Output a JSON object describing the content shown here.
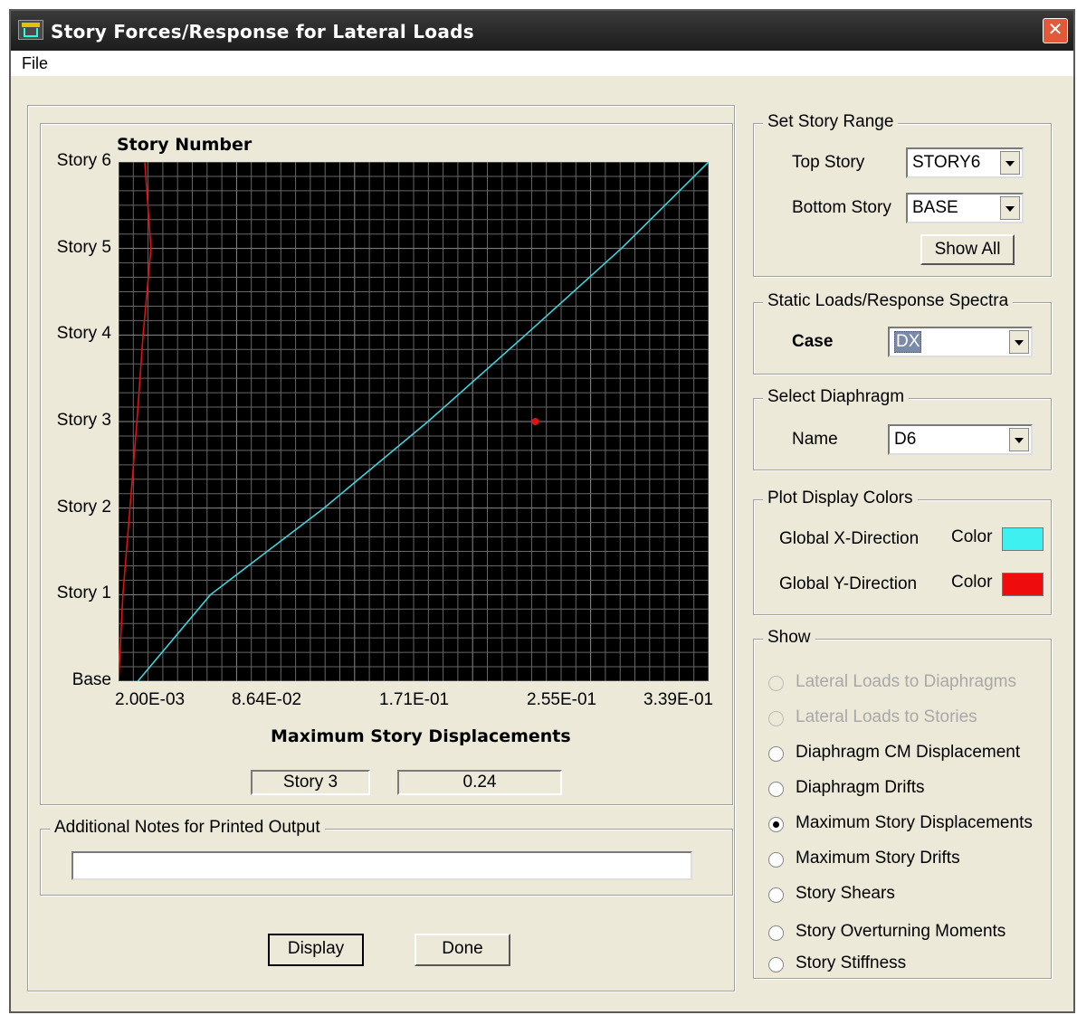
{
  "window": {
    "title": "Story Forces/Response for Lateral Loads",
    "close_glyph": "✕"
  },
  "menu": {
    "file": "File"
  },
  "chart_data": {
    "type": "line",
    "title": "Story Number",
    "xlabel": "Maximum Story Displacements",
    "ylabel": "Story Number",
    "x_tick_labels": [
      "2.00E-03",
      "8.64E-02",
      "1.71E-01",
      "2.55E-01",
      "3.39E-01"
    ],
    "xlim": [
      0.002,
      0.339
    ],
    "y_categories": [
      "Base",
      "Story 1",
      "Story 2",
      "Story 3",
      "Story 4",
      "Story 5",
      "Story 6"
    ],
    "grid": true,
    "background": "#000000",
    "series": [
      {
        "color": "#3fd3dc",
        "x": [
          0.013,
          0.0545,
          0.1193,
          0.1787,
          0.2344,
          0.2891,
          0.339
        ],
        "y": [
          0,
          1,
          2,
          3,
          4,
          5,
          6
        ]
      },
      {
        "color": "#e01010",
        "x": [
          0.002,
          0.0045,
          0.0085,
          0.0125,
          0.016,
          0.0205,
          0.017
        ],
        "y": [
          0,
          1,
          2,
          3,
          4,
          5,
          6
        ]
      }
    ],
    "marker": {
      "x": 0.24,
      "y": 3,
      "color": "#e01010"
    }
  },
  "readout": {
    "story": "Story 3",
    "value": "0.24"
  },
  "notes": {
    "legend": "Additional Notes for Printed Output",
    "value": ""
  },
  "buttons": {
    "display": "Display",
    "done": "Done"
  },
  "story_range": {
    "legend": "Set Story Range",
    "top_label": "Top Story",
    "top_value": "STORY6",
    "bottom_label": "Bottom Story",
    "bottom_value": "BASE",
    "show_all": "Show All"
  },
  "static_loads": {
    "legend": "Static Loads/Response Spectra",
    "case_label": "Case",
    "case_value": "DX"
  },
  "diaphragm": {
    "legend": "Select  Diaphragm",
    "name_label": "Name",
    "name_value": "D6"
  },
  "plot_colors": {
    "legend": "Plot Display Colors",
    "x_label": "Global X-Direction",
    "y_label": "Global Y-Direction",
    "color_label": "Color",
    "x_color": "#3ff0f0",
    "y_color": "#ee0c0c"
  },
  "show": {
    "legend": "Show",
    "options": [
      {
        "label": "Lateral Loads to Diaphragms",
        "enabled": false,
        "checked": false
      },
      {
        "label": "Lateral Loads to Stories",
        "enabled": false,
        "checked": false
      },
      {
        "label": "Diaphragm CM Displacement",
        "enabled": true,
        "checked": false
      },
      {
        "label": "Diaphragm Drifts",
        "enabled": true,
        "checked": false
      },
      {
        "label": "Maximum Story Displacements",
        "enabled": true,
        "checked": true
      },
      {
        "label": "Maximum Story Drifts",
        "enabled": true,
        "checked": false
      },
      {
        "label": "Story Shears",
        "enabled": true,
        "checked": false
      },
      {
        "label": "Story Overturning Moments",
        "enabled": true,
        "checked": false
      },
      {
        "label": "Story Stiffness",
        "enabled": true,
        "checked": false
      }
    ]
  }
}
